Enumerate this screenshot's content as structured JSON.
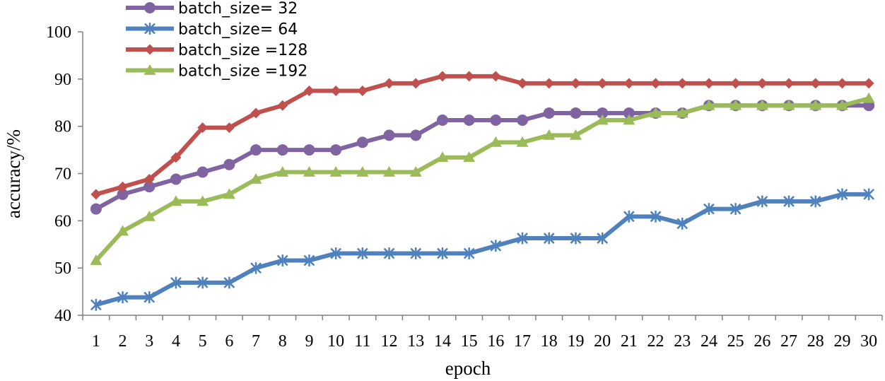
{
  "chart_data": {
    "type": "line",
    "title": "",
    "xlabel": "epoch",
    "ylabel": "accuracy/%",
    "categories": [
      "1",
      "2",
      "3",
      "4",
      "5",
      "6",
      "7",
      "8",
      "9",
      "10",
      "11",
      "12",
      "13",
      "14",
      "15",
      "16",
      "17",
      "18",
      "19",
      "20",
      "21",
      "22",
      "23",
      "24",
      "25",
      "26",
      "27",
      "28",
      "29",
      "30"
    ],
    "yticks": [
      "40",
      "50",
      "60",
      "70",
      "80",
      "90",
      "100"
    ],
    "ylim": [
      40,
      100
    ],
    "grid": false,
    "legend_position": "top-left",
    "series": [
      {
        "name": "batch_size= 32",
        "color": "#8064a2",
        "marker": "circle",
        "values": [
          62.5,
          65.6,
          67.2,
          68.8,
          70.3,
          71.9,
          75.0,
          75.0,
          75.0,
          75.0,
          76.6,
          78.1,
          78.1,
          81.3,
          81.3,
          81.3,
          81.3,
          82.8,
          82.8,
          82.8,
          82.8,
          82.8,
          82.8,
          84.4,
          84.4,
          84.4,
          84.4,
          84.4,
          84.4,
          84.4
        ]
      },
      {
        "name": "batch_size= 64",
        "color": "#4f81bd",
        "marker": "asterisk",
        "values": [
          42.2,
          43.8,
          43.8,
          46.9,
          46.9,
          46.9,
          50.0,
          51.6,
          51.6,
          53.1,
          53.1,
          53.1,
          53.1,
          53.1,
          53.1,
          54.7,
          56.3,
          56.3,
          56.3,
          56.3,
          60.9,
          60.9,
          59.4,
          62.5,
          62.5,
          64.1,
          64.1,
          64.1,
          65.6,
          65.6
        ]
      },
      {
        "name": "batch_size =128",
        "color": "#c0504d",
        "marker": "diamond",
        "values": [
          65.6,
          67.2,
          68.8,
          73.4,
          79.7,
          79.7,
          82.8,
          84.4,
          87.5,
          87.5,
          87.5,
          89.1,
          89.1,
          90.6,
          90.6,
          90.6,
          89.1,
          89.1,
          89.1,
          89.1,
          89.1,
          89.1,
          89.1,
          89.1,
          89.1,
          89.1,
          89.1,
          89.1,
          89.1,
          89.1
        ]
      },
      {
        "name": "batch_size =192",
        "color": "#9bbb59",
        "marker": "triangle",
        "values": [
          51.6,
          57.8,
          60.9,
          64.1,
          64.1,
          65.6,
          68.8,
          70.3,
          70.3,
          70.3,
          70.3,
          70.3,
          70.3,
          73.4,
          73.4,
          76.6,
          76.6,
          78.1,
          78.1,
          81.3,
          81.3,
          82.8,
          82.8,
          84.4,
          84.4,
          84.4,
          84.4,
          84.4,
          84.4,
          85.9
        ]
      }
    ]
  }
}
